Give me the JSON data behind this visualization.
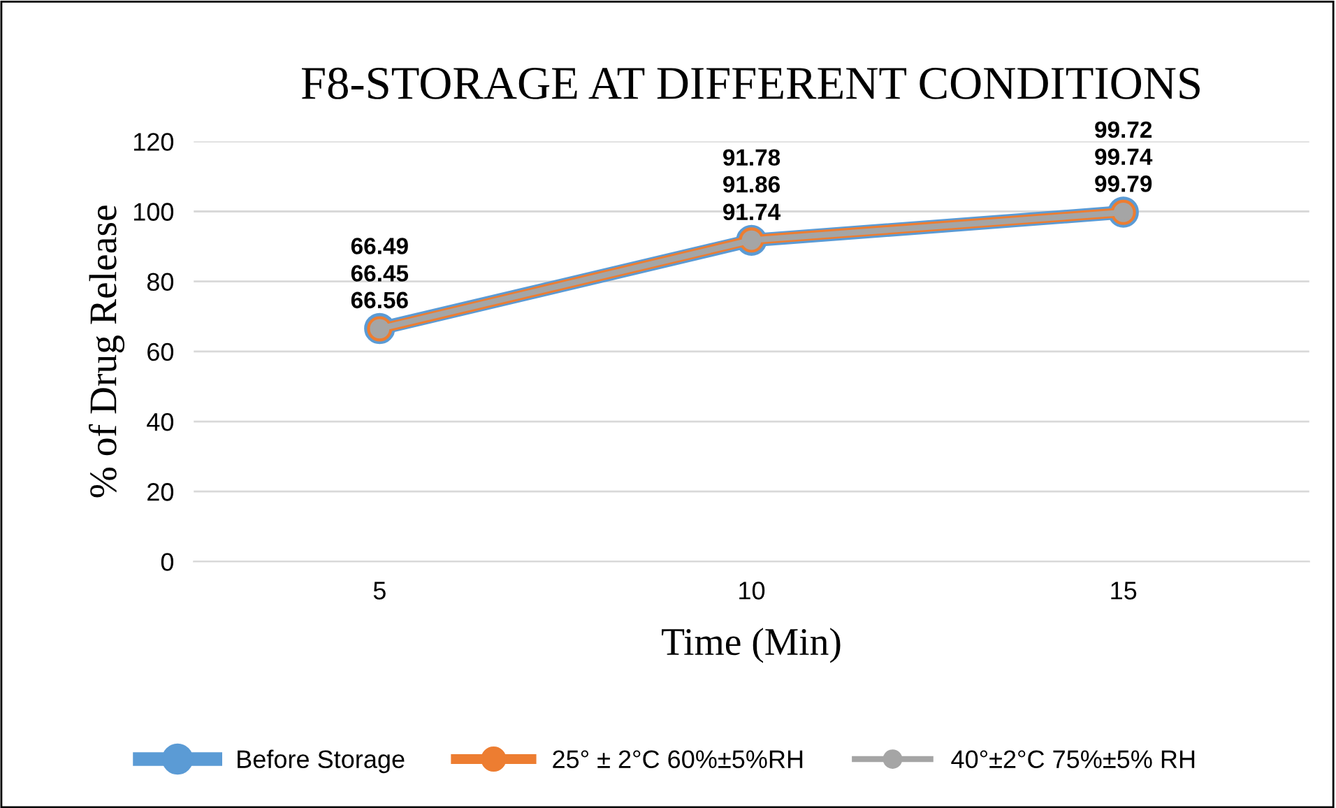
{
  "chart_data": {
    "type": "line",
    "title": "F8-STORAGE AT DIFFERENT CONDITIONS",
    "xlabel": "Time (Min)",
    "ylabel": "% of Drug Release",
    "categories": [
      "5",
      "10",
      "15"
    ],
    "series": [
      {
        "name": "Before Storage",
        "color": "#5b9bd5",
        "values": [
          66.56,
          91.74,
          99.79
        ]
      },
      {
        "name": "25° ± 2°C 60%±5%RH",
        "color": "#ed7d31",
        "values": [
          66.45,
          91.86,
          99.74
        ]
      },
      {
        "name": "40°±2°C 75%±5% RH",
        "color": "#a5a5a5",
        "values": [
          66.49,
          91.78,
          99.72
        ]
      }
    ],
    "ylim": [
      0,
      120
    ],
    "yticks": [
      0,
      20,
      40,
      60,
      80,
      100,
      120
    ],
    "grid": "y",
    "legend": "bottom",
    "marker": "circle",
    "line_style": "solid",
    "data_labels": true
  }
}
